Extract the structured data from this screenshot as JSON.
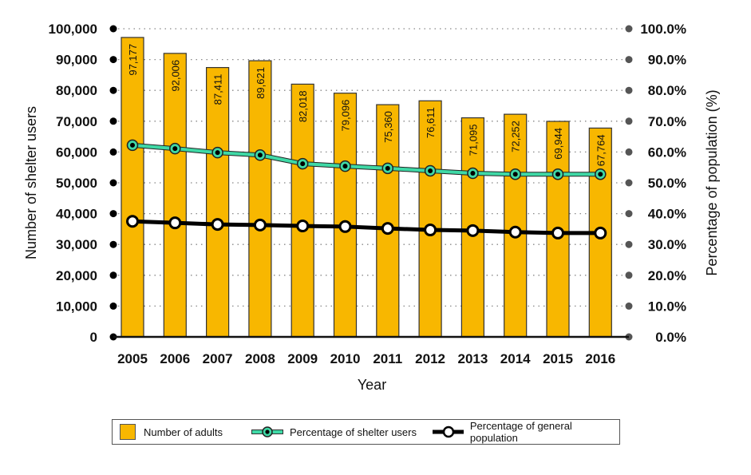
{
  "chart_data": {
    "type": "bar",
    "title": "",
    "xlabel": "Year",
    "ylabel": "Number of shelter users",
    "y2label": "Percentage of population (%)",
    "ylim": [
      0,
      100000
    ],
    "y2lim": [
      0,
      100
    ],
    "grid": true,
    "legend_position": "bottom",
    "categories": [
      "2005",
      "2006",
      "2007",
      "2008",
      "2009",
      "2010",
      "2011",
      "2012",
      "2013",
      "2014",
      "2015",
      "2016"
    ],
    "y_ticks": [
      "0",
      "10,000",
      "20,000",
      "30,000",
      "40,000",
      "50,000",
      "60,000",
      "70,000",
      "80,000",
      "90,000",
      "100,000"
    ],
    "y2_ticks": [
      "0.0%",
      "10.0%",
      "20.0%",
      "30.0%",
      "40.0%",
      "50.0%",
      "60.0%",
      "70.0%",
      "80.0%",
      "90.0%",
      "100.0%"
    ],
    "series": [
      {
        "name": "Number of adults",
        "type": "bar",
        "axis": "left",
        "color": "#f8b700",
        "values": [
          97177,
          92006,
          87411,
          89621,
          82018,
          79096,
          75360,
          76611,
          71095,
          72252,
          69944,
          67764
        ],
        "labels": [
          "97,177",
          "92,006",
          "87,411",
          "89,621",
          "82,018",
          "79,096",
          "75,360",
          "76,611",
          "71,095",
          "72,252",
          "69,944",
          "67,764"
        ]
      },
      {
        "name": "Percentage of shelter users",
        "type": "line",
        "axis": "right",
        "color": "#3fd9a6",
        "values": [
          62.2,
          61.1,
          59.8,
          59.0,
          56.2,
          55.4,
          54.7,
          53.9,
          53.1,
          52.8,
          52.8,
          52.8
        ]
      },
      {
        "name": "Percentage of general population",
        "type": "line",
        "axis": "right",
        "color": "#000000",
        "values": [
          37.5,
          37.0,
          36.5,
          36.3,
          36.0,
          35.8,
          35.2,
          34.7,
          34.5,
          34.0,
          33.7,
          33.7
        ]
      }
    ]
  },
  "legend": {
    "items": [
      {
        "label": "Number of adults"
      },
      {
        "label": "Percentage of shelter users"
      },
      {
        "label": "Percentage of general population"
      }
    ]
  }
}
